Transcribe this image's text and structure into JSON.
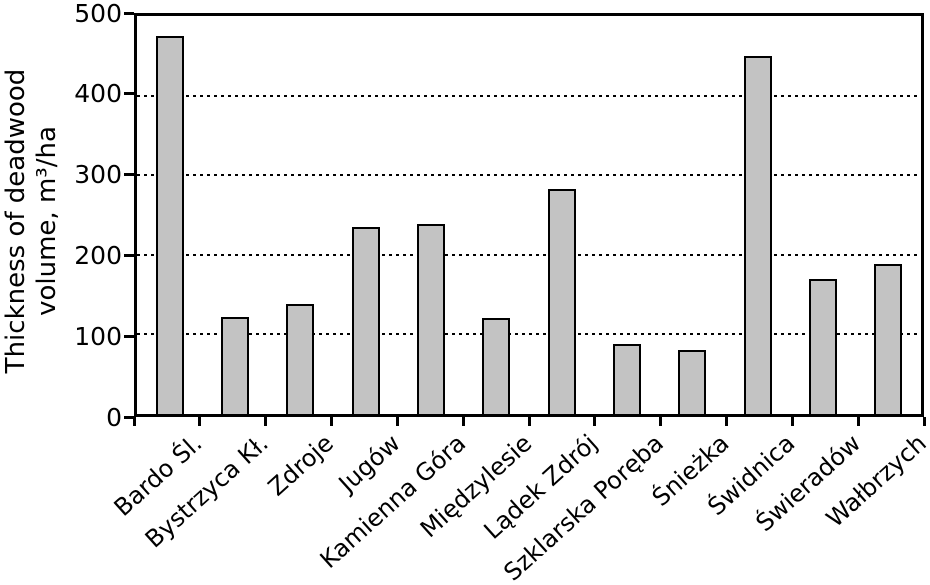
{
  "chart_data": {
    "type": "bar",
    "title": "",
    "ylabel": "Thickness of deadwood volume, m³/ha",
    "ylabel_lines": [
      "Thickness of deadwood",
      "volume, m³/ha"
    ],
    "xlabel": "",
    "categories": [
      "Bardo Śl.",
      "Bystrzyca Kł.",
      "Zdroje",
      "Jugów",
      "Kamienna Góra",
      "Międzylesie",
      "Lądek Zdrój",
      "Szklarska Poręba",
      "Śnieżka",
      "Świdnica",
      "Świeradów",
      "Wałbrzych"
    ],
    "values": [
      475,
      122,
      138,
      235,
      239,
      120,
      283,
      88,
      81,
      450,
      170,
      189
    ],
    "ylim": [
      0,
      500
    ],
    "yticks": [
      0,
      100,
      200,
      300,
      400,
      500
    ],
    "gridline_values": [
      100,
      200,
      300,
      400
    ],
    "grid_style": "horizontal dotted",
    "legend": null,
    "colors": {
      "bar_fill": "#c3c3c3",
      "bar_border": "#000000",
      "axis": "#000000",
      "background": "#ffffff"
    }
  }
}
